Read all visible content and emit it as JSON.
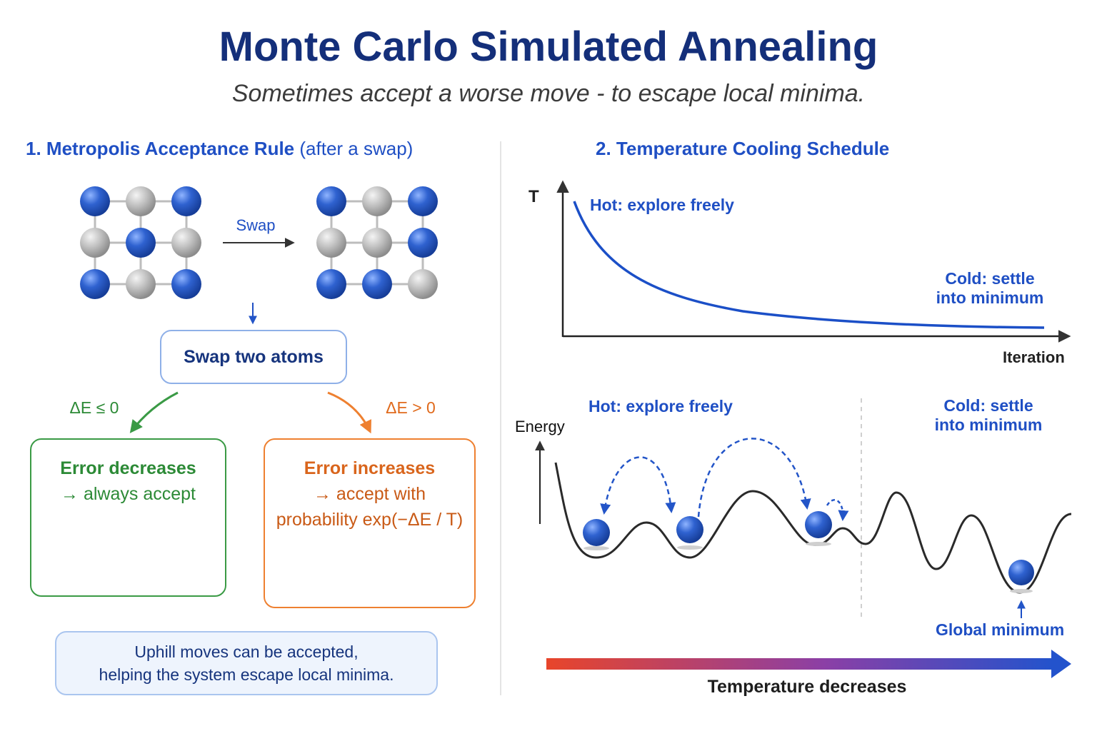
{
  "header": {
    "title": "Monte Carlo Simulated Annealing",
    "subtitle": "Sometimes accept a worse move - to escape local minima."
  },
  "section1": {
    "title_main": "1. Metropolis Acceptance Rule",
    "title_paren": "(after a swap)",
    "swap_label": "Swap",
    "swap_box": "Swap two atoms",
    "negative_condition": "ΔE ≤ 0",
    "positive_condition": "ΔE > 0",
    "accept_box": {
      "line1": "Error decreases",
      "line2": "→ always accept"
    },
    "reject_box": {
      "line1": "Error increases",
      "line2": "→ accept with",
      "line3": "probability exp(−ΔE / T)"
    },
    "note": {
      "line1": "Uphill moves can be accepted,",
      "line2": "helping the system escape local minima."
    },
    "lattice_before": [
      "blue",
      "gray",
      "blue",
      "gray",
      "blue",
      "gray",
      "blue",
      "gray",
      "blue"
    ],
    "lattice_after": [
      "blue",
      "gray",
      "blue",
      "gray",
      "gray",
      "blue",
      "blue",
      "blue",
      "gray"
    ],
    "colors": {
      "atom_blue": "#2f62d0",
      "atom_gray": "#b4b4b4",
      "accept": "#2c8a36",
      "reject": "#ee8030"
    },
    "icons": [
      "check-circle-icon",
      "dice-icon",
      "down-arrow-icon",
      "right-arrow-icon"
    ]
  },
  "section2": {
    "title": "2. Temperature Cooling Schedule",
    "cooling_chart": {
      "y_axis_label": "T",
      "x_axis_label": "Iteration",
      "hot_label": "Hot: explore freely",
      "cold_label_line1": "Cold: settle",
      "cold_label_line2": "into minimum"
    },
    "energy_chart": {
      "y_axis_label": "Energy",
      "hot_label": "Hot: explore freely",
      "cold_label_line1": "Cold: settle",
      "cold_label_line2": "into minimum",
      "global_minimum_label": "Global minimum"
    },
    "temperature_bar_label": "Temperature decreases",
    "colors": {
      "curve": "#1b4fc7",
      "gradient_start": "#e8452a",
      "gradient_mid": "#8b3fa6",
      "gradient_end": "#2353cc"
    }
  }
}
